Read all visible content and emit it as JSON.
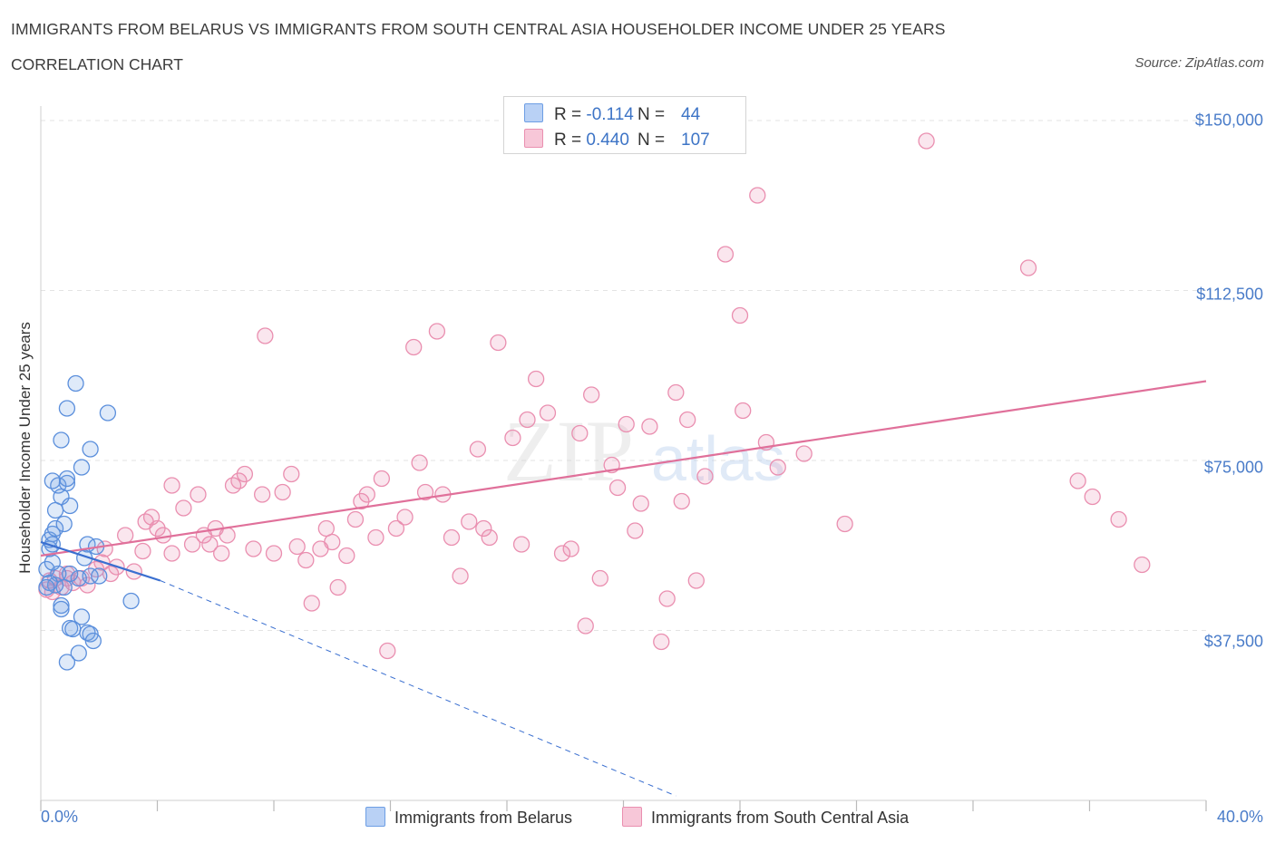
{
  "title": "IMMIGRANTS FROM BELARUS VS IMMIGRANTS FROM SOUTH CENTRAL ASIA HOUSEHOLDER INCOME UNDER 25 YEARS",
  "subtitle": "CORRELATION CHART",
  "source": "Source: ZipAtlas.com",
  "watermark": {
    "zip": "ZIP",
    "atlas": "atlas"
  },
  "legend": {
    "belarus": {
      "r_label": "R = ",
      "r_value": "-0.114",
      "n_label": "N = ",
      "n_value": "44"
    },
    "sca": {
      "r_label": "R = ",
      "r_value": "0.440",
      "n_label": "N = ",
      "n_value": "107"
    }
  },
  "chart_data": {
    "type": "scatter",
    "title": "IMMIGRANTS FROM BELARUS VS IMMIGRANTS FROM SOUTH CENTRAL ASIA HOUSEHOLDER INCOME UNDER 25 YEARS",
    "xlabel": "",
    "ylabel": "Householder Income Under 25 years",
    "xlim": [
      0,
      40
    ],
    "ylim": [
      0,
      150000
    ],
    "x_tick_labels": [
      "0.0%",
      "40.0%"
    ],
    "y_ticks": [
      37500,
      75000,
      112500,
      150000
    ],
    "y_tick_labels": [
      "$37,500",
      "$75,000",
      "$112,500",
      "$150,000"
    ],
    "grid": true,
    "legend_position": "bottom",
    "colors": {
      "belarus": "#6d9ee4",
      "sca": "#ea8fb0",
      "belarus_line": "#3a6fd0",
      "sca_line": "#e0709a",
      "axis_text": "#4a7cc9"
    },
    "series": [
      {
        "name": "Immigrants from Belarus",
        "color": "#6d9ee4",
        "trend": {
          "x": [
            0,
            4.1
          ],
          "y": [
            57000,
            48500
          ],
          "dashed_to": [
            21.8,
            1000
          ]
        },
        "points": [
          [
            0.3,
            55500
          ],
          [
            0.3,
            57500
          ],
          [
            0.4,
            58800
          ],
          [
            0.4,
            56500
          ],
          [
            0.5,
            60000
          ],
          [
            0.5,
            64000
          ],
          [
            0.4,
            70500
          ],
          [
            0.6,
            69500
          ],
          [
            0.7,
            67000
          ],
          [
            0.8,
            61000
          ],
          [
            0.9,
            70000
          ],
          [
            0.9,
            71000
          ],
          [
            1.0,
            65000
          ],
          [
            0.7,
            79500
          ],
          [
            0.9,
            86500
          ],
          [
            1.2,
            92000
          ],
          [
            1.4,
            73500
          ],
          [
            1.7,
            77500
          ],
          [
            2.3,
            85500
          ],
          [
            1.6,
            56500
          ],
          [
            1.5,
            53500
          ],
          [
            1.7,
            49500
          ],
          [
            1.3,
            49000
          ],
          [
            1.0,
            50000
          ],
          [
            0.8,
            47000
          ],
          [
            0.6,
            50000
          ],
          [
            0.5,
            47500
          ],
          [
            0.7,
            43000
          ],
          [
            0.7,
            42200
          ],
          [
            1.0,
            38000
          ],
          [
            1.1,
            37800
          ],
          [
            1.4,
            40500
          ],
          [
            1.6,
            37000
          ],
          [
            1.7,
            36700
          ],
          [
            1.8,
            35200
          ],
          [
            1.3,
            32500
          ],
          [
            0.9,
            30500
          ],
          [
            3.1,
            44000
          ],
          [
            2.0,
            49500
          ],
          [
            0.2,
            51000
          ],
          [
            0.4,
            52500
          ],
          [
            0.3,
            48000
          ],
          [
            1.9,
            56000
          ],
          [
            0.2,
            47000
          ]
        ]
      },
      {
        "name": "Immigrants from South Central Asia",
        "color": "#ea8fb0",
        "trend": {
          "x": [
            0,
            40
          ],
          "y": [
            54000,
            92500
          ]
        },
        "points": [
          [
            0.3,
            48500
          ],
          [
            0.5,
            49000
          ],
          [
            0.7,
            47000
          ],
          [
            0.9,
            50000
          ],
          [
            1.1,
            48000
          ],
          [
            1.4,
            49000
          ],
          [
            1.6,
            47500
          ],
          [
            1.9,
            51000
          ],
          [
            2.1,
            52500
          ],
          [
            2.2,
            55500
          ],
          [
            2.4,
            50000
          ],
          [
            2.6,
            51500
          ],
          [
            2.9,
            58500
          ],
          [
            3.2,
            50500
          ],
          [
            3.5,
            55000
          ],
          [
            3.6,
            61500
          ],
          [
            3.8,
            62500
          ],
          [
            4.0,
            60000
          ],
          [
            4.2,
            58500
          ],
          [
            4.5,
            54500
          ],
          [
            4.5,
            69500
          ],
          [
            4.9,
            64500
          ],
          [
            5.2,
            56500
          ],
          [
            5.4,
            67500
          ],
          [
            5.6,
            58500
          ],
          [
            5.8,
            56500
          ],
          [
            6.0,
            60000
          ],
          [
            6.2,
            54500
          ],
          [
            6.4,
            58500
          ],
          [
            6.6,
            69500
          ],
          [
            6.8,
            70500
          ],
          [
            7.0,
            72000
          ],
          [
            7.3,
            55500
          ],
          [
            7.6,
            67500
          ],
          [
            7.7,
            102500
          ],
          [
            8.0,
            54500
          ],
          [
            8.3,
            68000
          ],
          [
            8.6,
            72000
          ],
          [
            8.8,
            56000
          ],
          [
            9.1,
            53000
          ],
          [
            9.3,
            43500
          ],
          [
            9.6,
            55500
          ],
          [
            9.8,
            60000
          ],
          [
            10.0,
            57000
          ],
          [
            10.2,
            47000
          ],
          [
            10.5,
            54000
          ],
          [
            10.8,
            62000
          ],
          [
            11.0,
            66000
          ],
          [
            11.2,
            67500
          ],
          [
            11.5,
            58000
          ],
          [
            11.7,
            71000
          ],
          [
            11.9,
            33000
          ],
          [
            12.2,
            60000
          ],
          [
            12.5,
            62500
          ],
          [
            12.8,
            100000
          ],
          [
            13.0,
            74500
          ],
          [
            13.2,
            68000
          ],
          [
            13.6,
            103500
          ],
          [
            13.8,
            67500
          ],
          [
            14.1,
            58000
          ],
          [
            14.4,
            49500
          ],
          [
            14.7,
            61500
          ],
          [
            15.0,
            77500
          ],
          [
            15.2,
            60000
          ],
          [
            15.4,
            58000
          ],
          [
            15.7,
            101000
          ],
          [
            16.2,
            80000
          ],
          [
            16.5,
            56500
          ],
          [
            16.7,
            84000
          ],
          [
            17.0,
            93000
          ],
          [
            17.4,
            85500
          ],
          [
            17.9,
            54500
          ],
          [
            18.2,
            55500
          ],
          [
            18.5,
            81000
          ],
          [
            18.7,
            38500
          ],
          [
            18.9,
            89500
          ],
          [
            19.2,
            49000
          ],
          [
            19.6,
            74000
          ],
          [
            19.8,
            69000
          ],
          [
            20.1,
            83000
          ],
          [
            20.4,
            59500
          ],
          [
            20.6,
            65500
          ],
          [
            20.9,
            82500
          ],
          [
            21.3,
            35000
          ],
          [
            21.5,
            44500
          ],
          [
            21.8,
            90000
          ],
          [
            22.0,
            66000
          ],
          [
            22.2,
            84000
          ],
          [
            22.5,
            48500
          ],
          [
            22.8,
            71500
          ],
          [
            23.5,
            120500
          ],
          [
            24.0,
            107000
          ],
          [
            24.1,
            86000
          ],
          [
            24.6,
            133500
          ],
          [
            24.9,
            79000
          ],
          [
            25.3,
            73500
          ],
          [
            26.2,
            76500
          ],
          [
            27.6,
            61000
          ],
          [
            30.4,
            145500
          ],
          [
            33.9,
            117500
          ],
          [
            35.6,
            70500
          ],
          [
            36.1,
            67000
          ],
          [
            37.0,
            62000
          ],
          [
            37.8,
            52000
          ],
          [
            0.2,
            46500
          ],
          [
            0.4,
            46000
          ],
          [
            0.9,
            49000
          ]
        ]
      }
    ]
  },
  "bottom_legend": [
    {
      "label": "Immigrants from Belarus",
      "color": "#6d9ee4"
    },
    {
      "label": "Immigrants from South Central Asia",
      "color": "#ea8fb0"
    }
  ]
}
